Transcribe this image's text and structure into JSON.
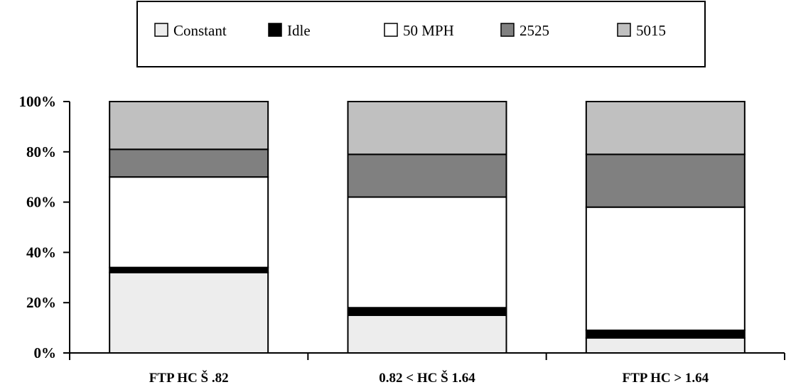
{
  "chart_data": {
    "type": "bar",
    "stacked": "percent",
    "categories": [
      "FTP HC Š .82",
      "0.82 < HC Š 1.64",
      "FTP HC > 1.64"
    ],
    "series": [
      {
        "name": "Constant",
        "color": "#ededed",
        "values": [
          32,
          15,
          6
        ]
      },
      {
        "name": "Idle",
        "color": "#000000",
        "values": [
          2,
          3,
          3
        ]
      },
      {
        "name": "50 MPH",
        "color": "#ffffff",
        "values": [
          36,
          44,
          49
        ]
      },
      {
        "name": "2525",
        "color": "#808080",
        "values": [
          11,
          17,
          21
        ]
      },
      {
        "name": "5015",
        "color": "#c0c0c0",
        "values": [
          19,
          21,
          21
        ]
      }
    ],
    "y_ticks": [
      "0%",
      "20%",
      "40%",
      "60%",
      "80%",
      "100%"
    ],
    "ylim": [
      0,
      100
    ],
    "legend_position": "top",
    "grid": false
  }
}
